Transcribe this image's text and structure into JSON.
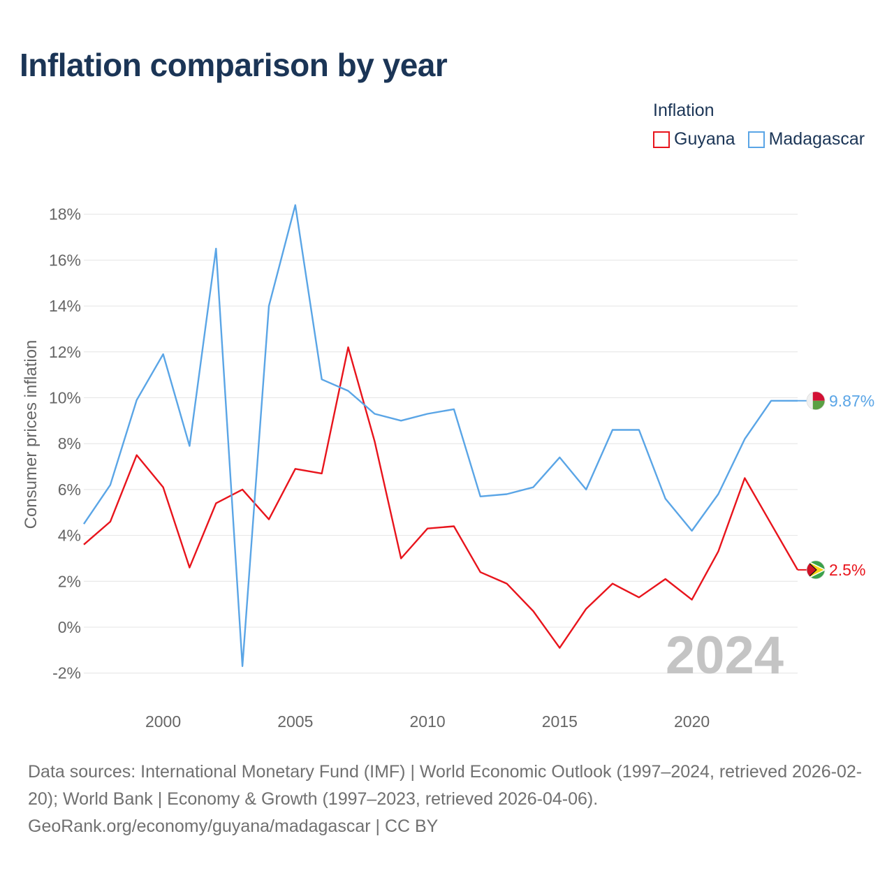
{
  "title": "Inflation comparison by year",
  "legend": {
    "title": "Inflation",
    "items": [
      {
        "label": "Guyana",
        "color": "#e8141c"
      },
      {
        "label": "Madagascar",
        "color": "#5aa5e6"
      }
    ]
  },
  "chart_data": {
    "type": "line",
    "title": "Inflation comparison by year",
    "xlabel": "",
    "ylabel": "Consumer prices inflation",
    "xlim": [
      1997,
      2024
    ],
    "ylim": [
      -3,
      18.5
    ],
    "y_ticks": [
      -2,
      0,
      2,
      4,
      6,
      8,
      10,
      12,
      14,
      16,
      18
    ],
    "y_tick_labels": [
      "-2%",
      "0%",
      "2%",
      "4%",
      "6%",
      "8%",
      "10%",
      "12%",
      "14%",
      "16%",
      "18%"
    ],
    "x_ticks": [
      2000,
      2005,
      2010,
      2015,
      2020
    ],
    "x_tick_labels": [
      "2000",
      "2005",
      "2010",
      "2015",
      "2020"
    ],
    "grid": true,
    "year_watermark": "2024",
    "x": [
      1997,
      1998,
      1999,
      2000,
      2001,
      2002,
      2003,
      2004,
      2005,
      2006,
      2007,
      2008,
      2009,
      2010,
      2011,
      2012,
      2013,
      2014,
      2015,
      2016,
      2017,
      2018,
      2019,
      2020,
      2021,
      2022,
      2023,
      2024
    ],
    "series": [
      {
        "name": "Guyana",
        "color": "#e8141c",
        "values": [
          3.6,
          4.6,
          7.5,
          6.1,
          2.6,
          5.4,
          6.0,
          4.7,
          6.9,
          6.7,
          12.2,
          8.1,
          3.0,
          4.3,
          4.4,
          2.4,
          1.9,
          0.7,
          -0.9,
          0.8,
          1.9,
          1.3,
          2.1,
          1.2,
          3.3,
          6.5,
          4.5,
          2.5
        ],
        "end_label": "2.5%"
      },
      {
        "name": "Madagascar",
        "color": "#5aa5e6",
        "values": [
          4.5,
          6.2,
          9.9,
          11.9,
          7.9,
          16.5,
          -1.7,
          14.0,
          18.4,
          10.8,
          10.3,
          9.3,
          9.0,
          9.3,
          9.5,
          5.7,
          5.8,
          6.1,
          7.4,
          6.0,
          8.6,
          8.6,
          5.6,
          4.2,
          5.8,
          8.2,
          9.87,
          9.87
        ],
        "end_label": "9.87%"
      }
    ]
  },
  "footer": {
    "line1": "Data sources: International Monetary Fund (IMF) | World Economic Outlook (1997–2024, retrieved 2026-02-20); World Bank | Economy & Growth (1997–2023, retrieved 2026-04-06).",
    "line2": "GeoRank.org/economy/guyana/madagascar | CC BY"
  }
}
